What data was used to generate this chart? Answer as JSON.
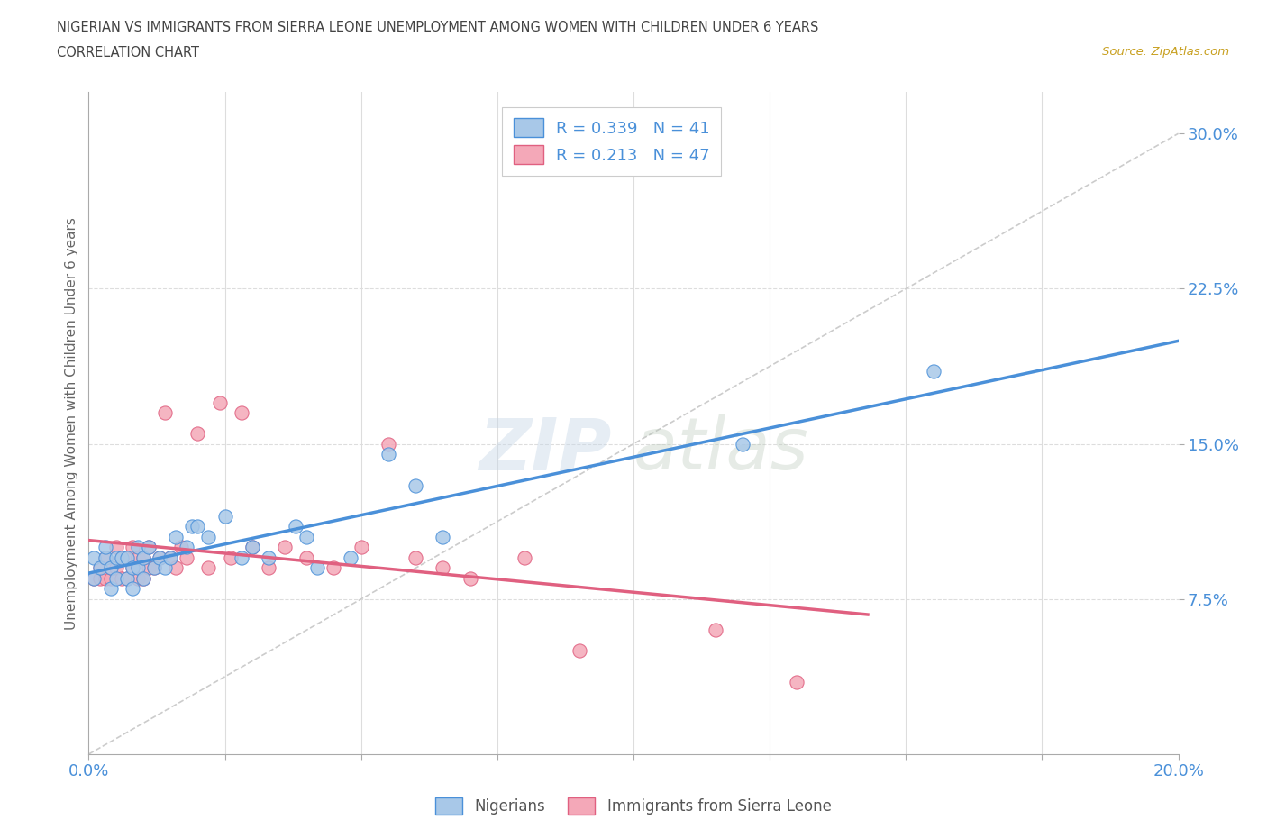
{
  "title_line1": "NIGERIAN VS IMMIGRANTS FROM SIERRA LEONE UNEMPLOYMENT AMONG WOMEN WITH CHILDREN UNDER 6 YEARS",
  "title_line2": "CORRELATION CHART",
  "source_text": "Source: ZipAtlas.com",
  "ylabel": "Unemployment Among Women with Children Under 6 years",
  "xlim": [
    0.0,
    0.2
  ],
  "ylim": [
    0.0,
    0.32
  ],
  "nigerian_color": "#a8c8e8",
  "sierra_leone_color": "#f4a8b8",
  "nigerian_line_color": "#4a90d9",
  "sierra_leone_line_color": "#e06080",
  "r_nigerian": 0.339,
  "n_nigerian": 41,
  "r_sierra_leone": 0.213,
  "n_sierra_leone": 47,
  "watermark_zip": "ZIP",
  "watermark_atlas": "atlas",
  "nigerian_x": [
    0.001,
    0.001,
    0.002,
    0.003,
    0.003,
    0.004,
    0.004,
    0.005,
    0.005,
    0.006,
    0.007,
    0.007,
    0.008,
    0.008,
    0.009,
    0.009,
    0.01,
    0.01,
    0.011,
    0.012,
    0.013,
    0.014,
    0.015,
    0.016,
    0.018,
    0.019,
    0.02,
    0.022,
    0.025,
    0.028,
    0.03,
    0.033,
    0.038,
    0.04,
    0.042,
    0.048,
    0.055,
    0.06,
    0.065,
    0.12,
    0.155
  ],
  "nigerian_y": [
    0.085,
    0.095,
    0.09,
    0.095,
    0.1,
    0.08,
    0.09,
    0.085,
    0.095,
    0.095,
    0.085,
    0.095,
    0.08,
    0.09,
    0.09,
    0.1,
    0.085,
    0.095,
    0.1,
    0.09,
    0.095,
    0.09,
    0.095,
    0.105,
    0.1,
    0.11,
    0.11,
    0.105,
    0.115,
    0.095,
    0.1,
    0.095,
    0.11,
    0.105,
    0.09,
    0.095,
    0.145,
    0.13,
    0.105,
    0.15,
    0.185
  ],
  "sierra_leone_x": [
    0.001,
    0.002,
    0.002,
    0.003,
    0.003,
    0.004,
    0.004,
    0.005,
    0.005,
    0.006,
    0.006,
    0.007,
    0.007,
    0.008,
    0.008,
    0.009,
    0.009,
    0.01,
    0.01,
    0.011,
    0.011,
    0.012,
    0.013,
    0.014,
    0.015,
    0.016,
    0.017,
    0.018,
    0.02,
    0.022,
    0.024,
    0.026,
    0.028,
    0.03,
    0.033,
    0.036,
    0.04,
    0.045,
    0.05,
    0.055,
    0.06,
    0.065,
    0.07,
    0.08,
    0.09,
    0.115,
    0.13
  ],
  "sierra_leone_y": [
    0.085,
    0.085,
    0.09,
    0.085,
    0.095,
    0.085,
    0.09,
    0.09,
    0.1,
    0.085,
    0.095,
    0.085,
    0.095,
    0.09,
    0.1,
    0.085,
    0.095,
    0.085,
    0.095,
    0.09,
    0.1,
    0.09,
    0.095,
    0.165,
    0.095,
    0.09,
    0.1,
    0.095,
    0.155,
    0.09,
    0.17,
    0.095,
    0.165,
    0.1,
    0.09,
    0.1,
    0.095,
    0.09,
    0.1,
    0.15,
    0.095,
    0.09,
    0.085,
    0.095,
    0.05,
    0.06,
    0.035
  ]
}
